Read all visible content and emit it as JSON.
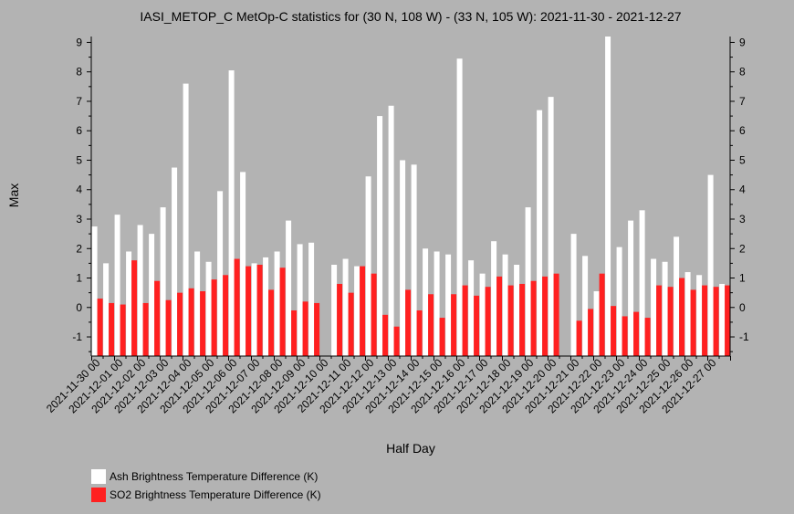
{
  "chart_data": {
    "type": "bar",
    "title": "IASI_METOP_C MetOp-C statistics for (30 N, 108 W) - (33 N, 105 W): 2021-11-30 - 2021-12-27",
    "xlabel": "Half Day",
    "ylabel": "Max",
    "ylim": [
      -1.65,
      9.2
    ],
    "yticks": [
      -1,
      0,
      1,
      2,
      3,
      4,
      5,
      6,
      7,
      8,
      9
    ],
    "grid": false,
    "legend_position": "bottom-left",
    "colors": {
      "background": "#b3b3b3",
      "ash": "#ffffff",
      "so2": "#ff2020"
    },
    "category_labels": [
      "2021-11-30 00",
      "2021-12-01 00",
      "2021-12-02 00",
      "2021-12-03 00",
      "2021-12-04 00",
      "2021-12-05 00",
      "2021-12-06 00",
      "2021-12-07 00",
      "2021-12-08 00",
      "2021-12-09 00",
      "2021-12-10 00",
      "2021-12-11 00",
      "2021-12-12 00",
      "2021-12-13 00",
      "2021-12-14 00",
      "2021-12-15 00",
      "2021-12-16 00",
      "2021-12-17 00",
      "2021-12-18 00",
      "2021-12-19 00",
      "2021-12-20 00",
      "2021-12-21 00",
      "2021-12-22 00",
      "2021-12-23 00",
      "2021-12-24 00",
      "2021-12-25 00",
      "2021-12-26 00",
      "2021-12-27 00"
    ],
    "series": [
      {
        "name": "Ash Brightness Temperature Difference (K)",
        "color": "#ffffff",
        "values": [
          2.75,
          1.5,
          3.15,
          1.9,
          2.8,
          2.5,
          3.4,
          4.75,
          7.6,
          1.9,
          1.55,
          3.95,
          8.05,
          4.6,
          1.5,
          1.7,
          1.9,
          2.95,
          2.15,
          2.2,
          null,
          1.45,
          1.65,
          1.4,
          4.45,
          6.5,
          6.85,
          5.0,
          4.85,
          2.0,
          1.9,
          1.8,
          8.45,
          1.6,
          1.15,
          2.25,
          1.8,
          1.45,
          3.4,
          6.7,
          7.15,
          null,
          2.5,
          1.75,
          0.55,
          9.2,
          2.05,
          2.95,
          3.3,
          1.65,
          1.55,
          2.4,
          1.2,
          1.1,
          4.5,
          0.8
        ]
      },
      {
        "name": "SO2 Brightness Temperature Difference (K)",
        "color": "#ff2020",
        "values": [
          0.3,
          0.15,
          0.1,
          1.6,
          0.15,
          0.9,
          0.25,
          0.5,
          0.65,
          0.55,
          0.95,
          1.1,
          1.65,
          1.4,
          1.45,
          0.6,
          1.35,
          -0.1,
          0.2,
          0.15,
          null,
          0.8,
          0.5,
          1.4,
          1.15,
          -0.25,
          -0.65,
          0.6,
          -0.1,
          0.45,
          -0.35,
          0.45,
          0.75,
          0.4,
          0.7,
          1.05,
          0.75,
          0.8,
          0.9,
          1.05,
          1.15,
          null,
          -0.45,
          -0.05,
          1.15,
          0.05,
          -0.3,
          -0.15,
          -0.35,
          0.75,
          0.7,
          1.0,
          0.6,
          0.75,
          0.7,
          0.75
        ]
      }
    ]
  }
}
